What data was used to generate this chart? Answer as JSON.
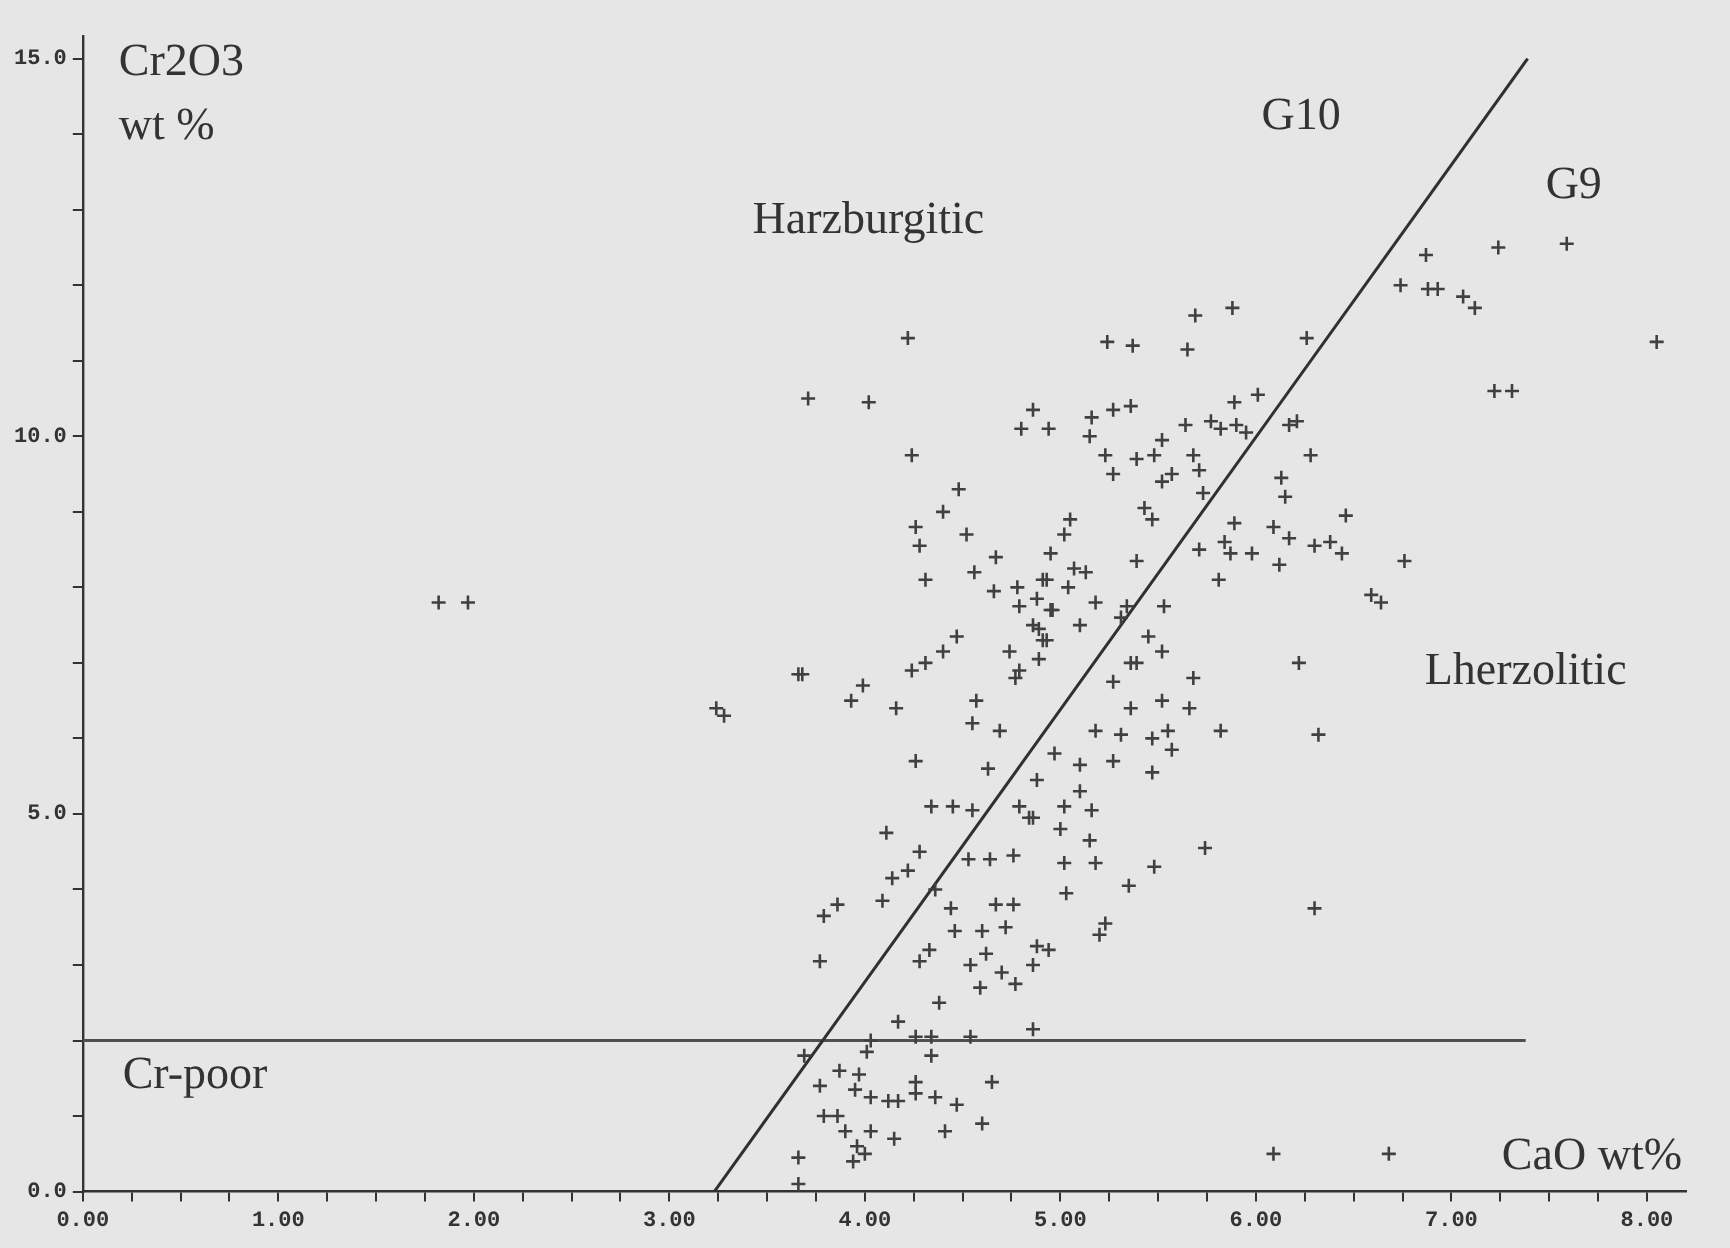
{
  "chart_data": {
    "type": "scatter",
    "xlabel": "CaO wt%",
    "ylabel": "Cr2O3 wt %",
    "grid": false,
    "legend": false,
    "xlim": [
      0,
      8.2
    ],
    "ylim": [
      0,
      15.3
    ],
    "xticks": [
      {
        "value": 0,
        "label": "0.00"
      },
      {
        "value": 0.25,
        "label": null
      },
      {
        "value": 0.5,
        "label": null
      },
      {
        "value": 0.75,
        "label": null
      },
      {
        "value": 1,
        "label": "1.00"
      },
      {
        "value": 1.25,
        "label": null
      },
      {
        "value": 1.5,
        "label": null
      },
      {
        "value": 1.75,
        "label": null
      },
      {
        "value": 2,
        "label": "2.00"
      },
      {
        "value": 2.25,
        "label": null
      },
      {
        "value": 2.5,
        "label": null
      },
      {
        "value": 2.75,
        "label": null
      },
      {
        "value": 3,
        "label": "3.00"
      },
      {
        "value": 3.25,
        "label": null
      },
      {
        "value": 3.5,
        "label": null
      },
      {
        "value": 3.75,
        "label": null
      },
      {
        "value": 4,
        "label": "4.00"
      },
      {
        "value": 4.25,
        "label": null
      },
      {
        "value": 4.5,
        "label": null
      },
      {
        "value": 4.75,
        "label": null
      },
      {
        "value": 5,
        "label": "5.00"
      },
      {
        "value": 5.25,
        "label": null
      },
      {
        "value": 5.5,
        "label": null
      },
      {
        "value": 5.75,
        "label": null
      },
      {
        "value": 6,
        "label": "6.00"
      },
      {
        "value": 6.25,
        "label": null
      },
      {
        "value": 6.5,
        "label": null
      },
      {
        "value": 6.75,
        "label": null
      },
      {
        "value": 7,
        "label": "7.00"
      },
      {
        "value": 7.25,
        "label": null
      },
      {
        "value": 7.5,
        "label": null
      },
      {
        "value": 7.75,
        "label": null
      },
      {
        "value": 8,
        "label": "8.00"
      }
    ],
    "yticks": [
      {
        "value": 0,
        "label": "0.0"
      },
      {
        "value": 1,
        "label": null
      },
      {
        "value": 2,
        "label": null
      },
      {
        "value": 3,
        "label": null
      },
      {
        "value": 4,
        "label": null
      },
      {
        "value": 5,
        "label": "5.0"
      },
      {
        "value": 6,
        "label": null
      },
      {
        "value": 7,
        "label": null
      },
      {
        "value": 8,
        "label": null
      },
      {
        "value": 9,
        "label": null
      },
      {
        "value": 10,
        "label": "10.0"
      },
      {
        "value": 11,
        "label": null
      },
      {
        "value": 12,
        "label": null
      },
      {
        "value": 13,
        "label": null
      },
      {
        "value": 14,
        "label": null
      },
      {
        "value": 15,
        "label": "15.0"
      }
    ],
    "series": [
      {
        "color": "#404040",
        "marker": "cross",
        "x": [
          1.82,
          1.97,
          3.24,
          3.66,
          3.71,
          4.22,
          4.02,
          4.24,
          4.86,
          4.8,
          4.94,
          4.48,
          4.4,
          4.26,
          4.28,
          4.52,
          4.67,
          4.31,
          4.56,
          4.66,
          4.78,
          4.88,
          4.93,
          4.79,
          4.96,
          4.89,
          4.93,
          4.47,
          4.4,
          4.31,
          4.24,
          4.74,
          4.79,
          4.77,
          4.89,
          3.68,
          3.99,
          3.93,
          4.16,
          3.28,
          4.57,
          4.55,
          4.69,
          5.69,
          5.88,
          5.24,
          5.37,
          5.65,
          6.26,
          5.16,
          5.27,
          5.36,
          5.15,
          5.23,
          5.27,
          5.39,
          5.48,
          5.52,
          5.64,
          5.77,
          5.82,
          5.9,
          6.01,
          5.95,
          5.68,
          5.71,
          5.57,
          5.52,
          5.73,
          5.89,
          6.17,
          6.21,
          6.28,
          6.13,
          6.15,
          6.46,
          5.43,
          5.47,
          5.05,
          5.02,
          4.95,
          5.89,
          6.09,
          6.17,
          6.3,
          6.38,
          6.44,
          5.84,
          5.87,
          5.98,
          6.12,
          5.71,
          5.81,
          5.39,
          5.07,
          5.13,
          4.91,
          5.04,
          5.18,
          4.95,
          5.1,
          5.34,
          5.31,
          5.53,
          5.45,
          4.86,
          4.91,
          5.36,
          5.39,
          5.52,
          5.27,
          5.68,
          5.52,
          5.66,
          5.36,
          5.18,
          5.31,
          5.47,
          5.55,
          5.82,
          6.32,
          6.59,
          6.64,
          6.22,
          6.87,
          7.24,
          7.59,
          6.74,
          6.88,
          6.93,
          7.06,
          7.12,
          8.05,
          7.22,
          7.31,
          6.76,
          5.74,
          6.3,
          6.09,
          6.68,
          5.57,
          5.47,
          4.97,
          5.1,
          5.27,
          4.88,
          5.1,
          5.02,
          5.16,
          4.86,
          5,
          5.15,
          5.02,
          5.18,
          5.48,
          5.35,
          5.03,
          5.23,
          5.2,
          4.88,
          4.94,
          4.86,
          4.86,
          4.26,
          4.63,
          4.34,
          4.45,
          4.55,
          4.79,
          4.84,
          4.11,
          4.28,
          4.22,
          4.14,
          4.09,
          3.79,
          3.86,
          3.77,
          4.36,
          4.44,
          4.53,
          4.64,
          4.76,
          4.67,
          4.76,
          4.46,
          4.6,
          4.72,
          4.33,
          4.28,
          4.62,
          4.54,
          4.7,
          4.77,
          4.59,
          4.38,
          4.17,
          4.26,
          4.34,
          4.03,
          4.01,
          4.34,
          4.54,
          3.69,
          3.87,
          3.97,
          3.77,
          3.95,
          4.03,
          4.12,
          4.17,
          4.26,
          4.26,
          4.36,
          4.47,
          4.65,
          3.79,
          3.86,
          3.9,
          4.03,
          3.96,
          4,
          3.94,
          4.15,
          4.41,
          4.6,
          3.66,
          3.66
        ],
        "values": [
          7.8,
          7.8,
          6.4,
          6.85,
          10.5,
          11.3,
          10.45,
          9.75,
          10.35,
          10.1,
          10.1,
          9.3,
          9,
          8.8,
          8.55,
          8.7,
          8.4,
          8.1,
          8.2,
          7.95,
          8,
          7.85,
          8.1,
          7.75,
          7.7,
          7.45,
          7.3,
          7.35,
          7.15,
          7,
          6.9,
          7.15,
          6.9,
          6.8,
          7.05,
          6.85,
          6.7,
          6.5,
          6.4,
          6.3,
          6.5,
          6.2,
          6.1,
          11.6,
          11.7,
          11.25,
          11.2,
          11.15,
          11.3,
          10.25,
          10.35,
          10.4,
          10,
          9.75,
          9.5,
          9.7,
          9.75,
          9.95,
          10.15,
          10.2,
          10.1,
          10.15,
          10.55,
          10.05,
          9.75,
          9.55,
          9.5,
          9.4,
          9.25,
          10.45,
          10.15,
          10.2,
          9.75,
          9.45,
          9.2,
          8.95,
          9.05,
          8.9,
          8.9,
          8.7,
          8.45,
          8.85,
          8.8,
          8.65,
          8.55,
          8.6,
          8.45,
          8.6,
          8.45,
          8.45,
          8.3,
          8.5,
          8.1,
          8.35,
          8.25,
          8.2,
          8.1,
          8,
          7.8,
          7.7,
          7.5,
          7.75,
          7.6,
          7.75,
          7.35,
          7.5,
          7.3,
          7,
          7,
          7.15,
          6.75,
          6.8,
          6.5,
          6.4,
          6.4,
          6.1,
          6.05,
          6,
          6.1,
          6.1,
          6.05,
          7.9,
          7.8,
          7,
          12.4,
          12.5,
          12.55,
          12,
          11.95,
          11.95,
          11.85,
          11.7,
          11.25,
          10.6,
          10.6,
          8.35,
          4.55,
          3.75,
          0.5,
          0.5,
          5.85,
          5.55,
          5.8,
          5.65,
          5.7,
          5.45,
          5.3,
          5.1,
          5.05,
          4.95,
          4.8,
          4.65,
          4.35,
          4.35,
          4.3,
          4.05,
          3.95,
          3.55,
          3.4,
          3.25,
          3.2,
          3,
          2.15,
          5.7,
          5.6,
          5.1,
          5.1,
          5.05,
          5.1,
          4.95,
          4.75,
          4.5,
          4.25,
          4.15,
          3.85,
          3.65,
          3.8,
          3.05,
          4,
          3.75,
          4.4,
          4.4,
          4.45,
          3.8,
          3.8,
          3.45,
          3.45,
          3.5,
          3.2,
          3.05,
          3.15,
          3,
          2.9,
          2.75,
          2.7,
          2.5,
          2.25,
          2.05,
          2.05,
          2,
          1.85,
          1.8,
          2.05,
          1.8,
          1.6,
          1.55,
          1.4,
          1.35,
          1.25,
          1.2,
          1.2,
          1.3,
          1.45,
          1.25,
          1.15,
          1.45,
          1,
          1,
          0.8,
          0.8,
          0.6,
          0.5,
          0.4,
          0.7,
          0.8,
          0.9,
          0.45,
          0.1
        ]
      },
      {
        "type": "line",
        "color": "#303030",
        "x": [
          3.23,
          7.39
        ],
        "values": [
          0,
          15
        ]
      },
      {
        "type": "line",
        "color": "#505050",
        "x": [
          0,
          7.38
        ],
        "values": [
          2,
          2
        ]
      }
    ],
    "annotations": [
      "Harzburgitic",
      "G10",
      "G9",
      "Lherzolitic",
      "Cr-poor"
    ]
  }
}
